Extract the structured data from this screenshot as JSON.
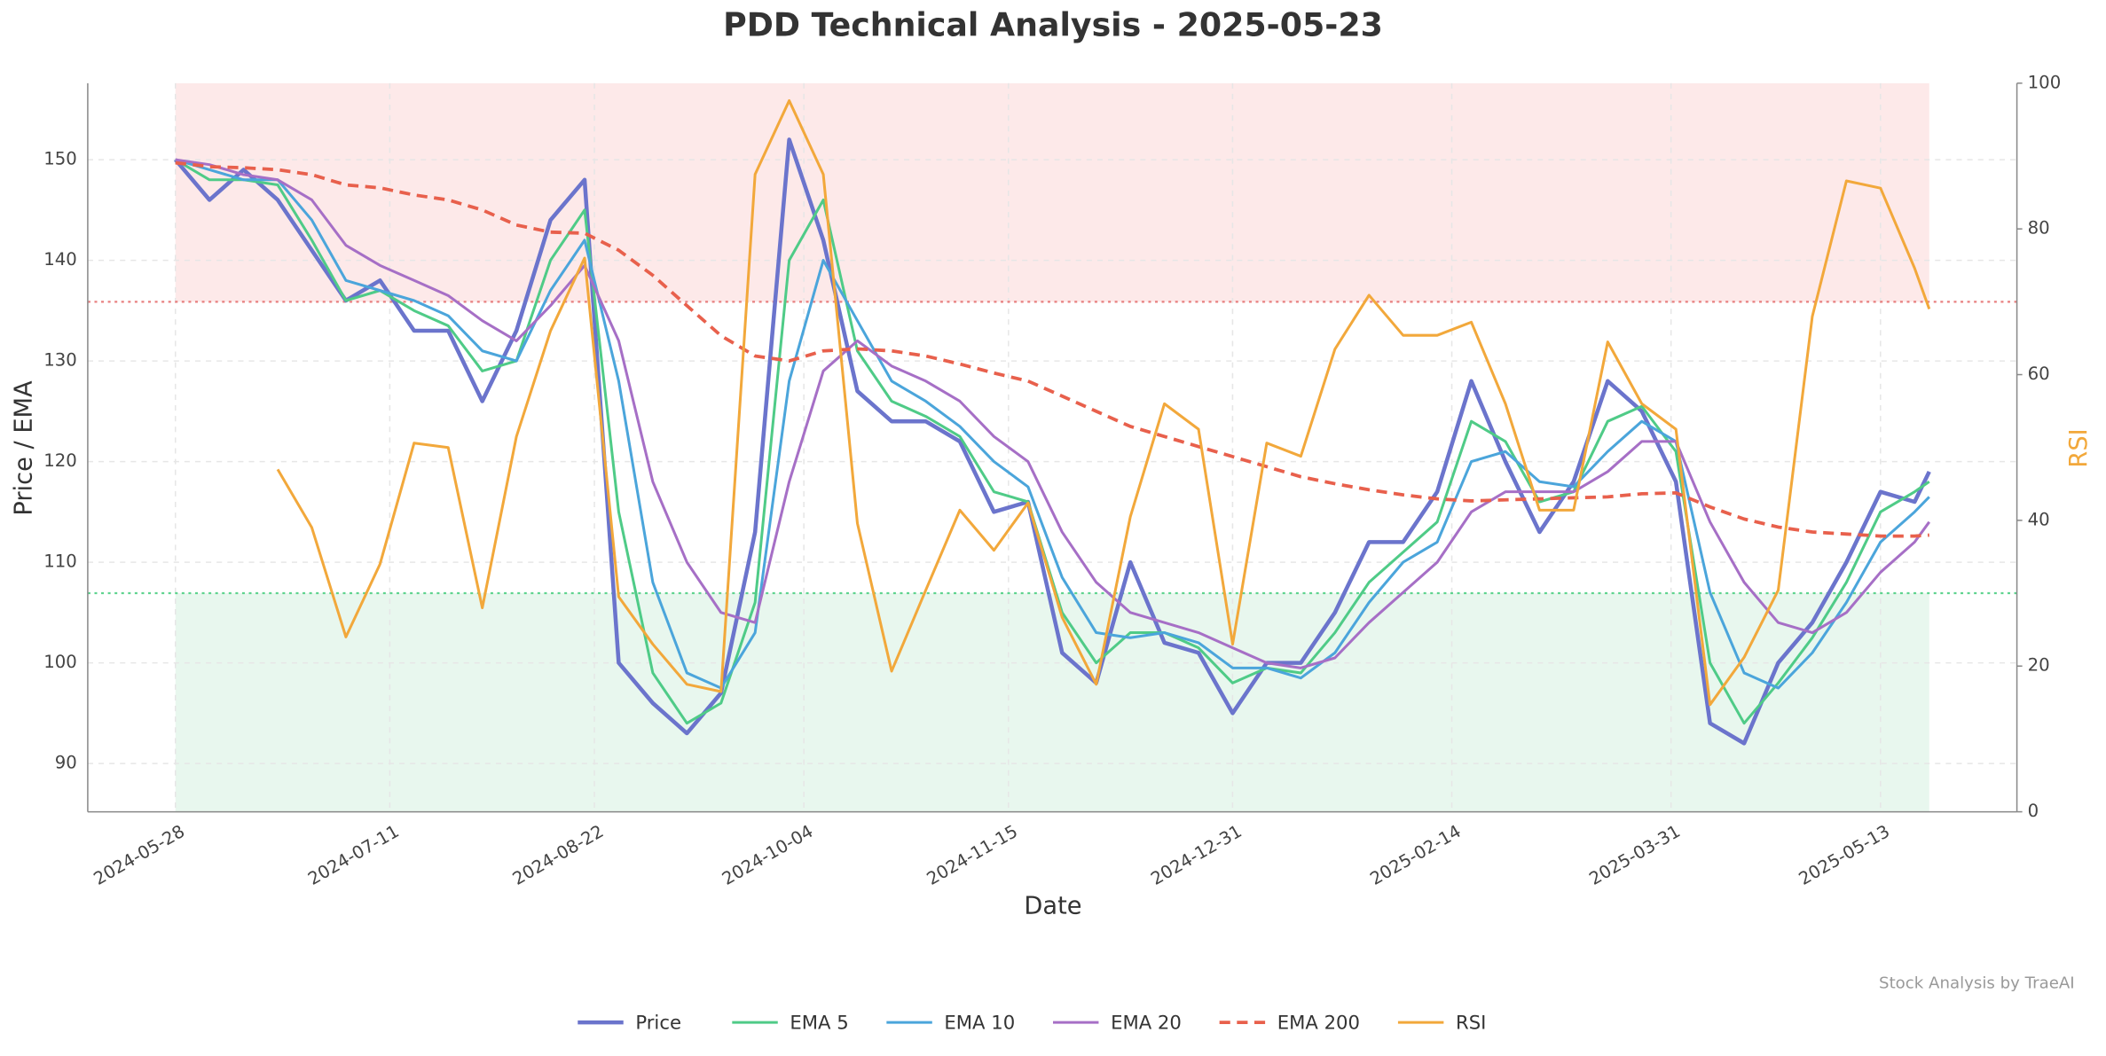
{
  "chart_data": {
    "type": "line",
    "title": "PDD Technical Analysis - 2025-05-23",
    "x_label": "Date",
    "y_label": "Price / EMA",
    "y2_label": "RSI",
    "annotation": "Stock Analysis by TraeAI",
    "x": [
      "2024-05-28",
      "2024-06-04",
      "2024-06-11",
      "2024-06-18",
      "2024-06-25",
      "2024-07-02",
      "2024-07-09",
      "2024-07-16",
      "2024-07-23",
      "2024-07-30",
      "2024-08-06",
      "2024-08-13",
      "2024-08-20",
      "2024-08-27",
      "2024-09-03",
      "2024-09-10",
      "2024-09-17",
      "2024-09-24",
      "2024-10-01",
      "2024-10-08",
      "2024-10-15",
      "2024-10-22",
      "2024-10-29",
      "2024-11-05",
      "2024-11-12",
      "2024-11-19",
      "2024-11-26",
      "2024-12-03",
      "2024-12-10",
      "2024-12-17",
      "2024-12-24",
      "2024-12-31",
      "2025-01-07",
      "2025-01-14",
      "2025-01-21",
      "2025-01-28",
      "2025-02-04",
      "2025-02-11",
      "2025-02-18",
      "2025-02-25",
      "2025-03-04",
      "2025-03-11",
      "2025-03-18",
      "2025-03-25",
      "2025-04-01",
      "2025-04-08",
      "2025-04-15",
      "2025-04-22",
      "2025-04-29",
      "2025-05-06",
      "2025-05-13",
      "2025-05-20",
      "2025-05-23"
    ],
    "xlim": [
      "2024-05-10",
      "2025-06-10"
    ],
    "xticks": [
      "2024-05-28",
      "2024-07-11",
      "2024-08-22",
      "2024-10-04",
      "2024-11-15",
      "2024-12-31",
      "2025-02-14",
      "2025-03-31",
      "2025-05-13"
    ],
    "ylim": [
      85.2,
      157.6
    ],
    "yticks": [
      90,
      100,
      110,
      120,
      130,
      140,
      150
    ],
    "y2lim": [
      0,
      100
    ],
    "y2ticks": [
      0,
      20,
      40,
      60,
      80,
      100
    ],
    "grid": true,
    "legend": "bottom",
    "overbought": 70,
    "oversold": 30,
    "overbought_color": "#fde9e9",
    "oversold_color": "#e8f7ee",
    "series": [
      {
        "name": "Price",
        "color": "#6b74cc",
        "width": 3,
        "values": [
          150,
          146,
          149,
          146,
          141,
          136,
          138,
          133,
          133,
          126,
          133,
          144,
          148,
          100,
          96,
          93,
          97,
          113,
          152,
          142,
          127,
          124,
          124,
          122,
          115,
          116,
          101,
          98,
          110,
          102,
          101,
          95,
          100,
          100,
          105,
          112,
          112,
          117,
          128,
          120,
          113,
          118,
          128,
          125,
          118,
          94,
          92,
          100,
          104,
          110,
          117,
          116,
          119
        ]
      },
      {
        "name": "EMA 5",
        "color": "#4fcb87",
        "width": 2,
        "values": [
          150,
          148,
          148,
          147.5,
          142,
          136,
          137,
          135,
          133.5,
          129,
          130,
          140,
          145,
          115,
          99,
          94,
          96,
          106,
          140,
          146,
          131,
          126,
          124.5,
          122.5,
          117,
          116,
          105,
          100,
          103,
          103,
          101.5,
          98,
          99.5,
          99,
          103,
          108,
          111,
          114,
          124,
          122,
          116,
          117,
          124,
          125.5,
          121,
          100,
          94,
          98,
          102.5,
          108,
          115,
          117,
          118
        ]
      },
      {
        "name": "EMA 10",
        "color": "#4ba5db",
        "width": 2,
        "values": [
          150,
          149,
          148,
          148,
          144,
          138,
          137,
          136,
          134.5,
          131,
          130,
          137,
          142,
          128,
          108,
          99,
          97.5,
          103,
          128,
          140,
          134,
          128,
          126,
          123.5,
          120,
          117.5,
          108.5,
          103,
          102.5,
          103,
          102,
          99.5,
          99.5,
          98.5,
          101,
          106,
          110,
          112,
          120,
          121,
          118,
          117.5,
          121,
          124,
          122,
          107,
          99,
          97.5,
          101,
          106,
          112,
          115,
          116.5
        ]
      },
      {
        "name": "EMA 20",
        "color": "#a66fc6",
        "width": 2,
        "values": [
          150,
          149.5,
          148.5,
          148,
          146,
          141.5,
          139.5,
          138,
          136.5,
          134,
          132,
          135.5,
          139.5,
          132,
          118,
          110,
          105,
          104,
          118,
          129,
          132,
          129.5,
          128,
          126,
          122.5,
          120,
          113,
          108,
          105,
          104,
          103,
          101.5,
          100,
          99.5,
          100.5,
          104,
          107,
          110,
          115,
          117,
          117,
          117,
          119,
          122,
          122,
          114,
          108,
          104,
          103,
          105,
          109,
          112,
          114
        ]
      },
      {
        "name": "EMA 200",
        "color": "#e8604c",
        "width": 2.5,
        "dash": true,
        "values": [
          149.7,
          149.3,
          149.2,
          149,
          148.5,
          147.5,
          147.2,
          146.5,
          146,
          145,
          143.5,
          142.8,
          142.7,
          141,
          138.5,
          135.5,
          132.5,
          130.5,
          130,
          131,
          131.2,
          131,
          130.5,
          129.7,
          128.8,
          128,
          126.5,
          125,
          123.5,
          122.5,
          121.5,
          120.5,
          119.5,
          118.5,
          117.8,
          117.2,
          116.7,
          116.3,
          116.1,
          116.2,
          116.3,
          116.4,
          116.5,
          116.8,
          116.9,
          115.5,
          114.3,
          113.5,
          113,
          112.8,
          112.6,
          112.6,
          112.7
        ]
      },
      {
        "name": "RSI",
        "color": "#f2a83b",
        "width": 2,
        "axis": "y2",
        "values": [
          null,
          null,
          null,
          47,
          39,
          24,
          34,
          50.6,
          50,
          28,
          51.5,
          66,
          76,
          29.5,
          23,
          17.5,
          16.5,
          87.5,
          97.6,
          87.5,
          39.6,
          19.3,
          30.4,
          41.4,
          35.9,
          42.4,
          26.7,
          17.5,
          40.5,
          56,
          52.5,
          23,
          50.6,
          48.8,
          63.5,
          70.9,
          65.4,
          65.4,
          67.2,
          56,
          41.4,
          41.4,
          64.5,
          56,
          52.5,
          14.7,
          21.2,
          30.4,
          68,
          86.6,
          85.6,
          74.6,
          69
        ]
      }
    ]
  }
}
